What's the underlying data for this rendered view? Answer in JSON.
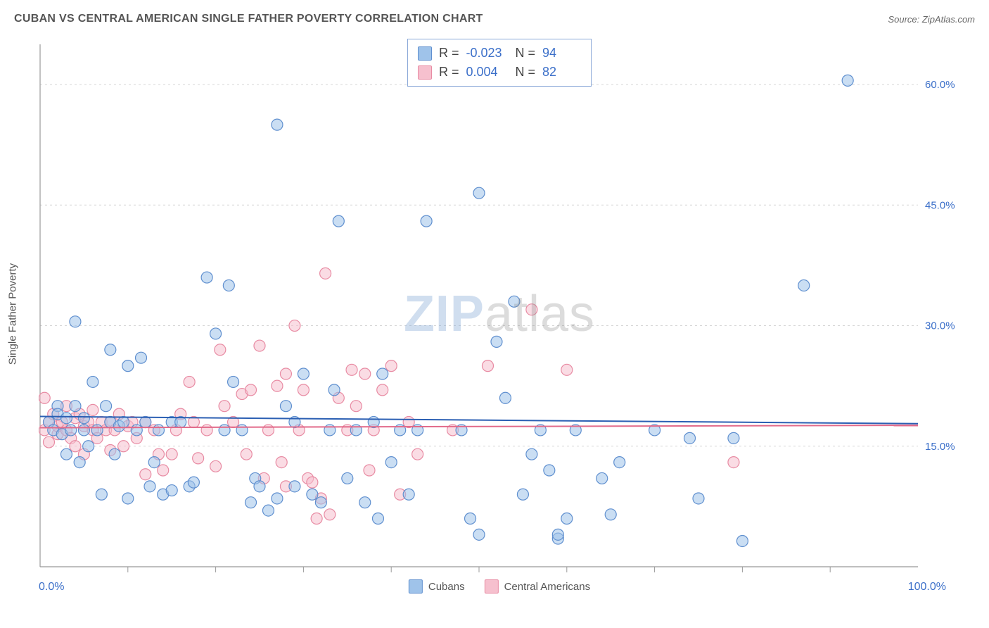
{
  "title": "CUBAN VS CENTRAL AMERICAN SINGLE FATHER POVERTY CORRELATION CHART",
  "source_label": "Source: ZipAtlas.com",
  "y_axis_label": "Single Father Poverty",
  "watermark": {
    "zip": "ZIP",
    "atlas": "atlas"
  },
  "chart": {
    "type": "scatter",
    "xlim": [
      0,
      100
    ],
    "ylim": [
      0,
      65
    ],
    "x_min_label": "0.0%",
    "x_max_label": "100.0%",
    "y_ticks": [
      15,
      30,
      45,
      60
    ],
    "y_tick_labels": [
      "15.0%",
      "30.0%",
      "45.0%",
      "60.0%"
    ],
    "x_ticks": [
      10,
      20,
      30,
      40,
      50,
      60,
      70,
      80,
      90
    ],
    "background_color": "#ffffff",
    "grid_color": "#d7d7d7",
    "grid_dash": "3,4",
    "axis_color": "#999999",
    "tick_label_color": "#3b6fc9",
    "tick_label_fontsize": 15,
    "marker_radius": 8,
    "marker_stroke_width": 1.2,
    "marker_opacity": 0.55,
    "line_width": 2,
    "series": [
      {
        "name": "Cubans",
        "fill": "#9fc3ea",
        "stroke": "#5f8fcf",
        "line_color": "#2b5fb3",
        "R": "-0.023",
        "N": "94",
        "trend": {
          "y_start": 18.7,
          "y_end": 17.8
        },
        "points": [
          [
            1,
            18
          ],
          [
            1.5,
            17
          ],
          [
            2,
            20
          ],
          [
            2,
            19
          ],
          [
            2.5,
            16.5
          ],
          [
            3,
            18.5
          ],
          [
            3,
            14
          ],
          [
            3.5,
            17
          ],
          [
            4,
            30.5
          ],
          [
            4,
            20
          ],
          [
            4.5,
            13
          ],
          [
            5,
            17
          ],
          [
            5,
            18.5
          ],
          [
            5.5,
            15
          ],
          [
            6,
            23
          ],
          [
            6.5,
            17
          ],
          [
            7,
            9
          ],
          [
            7.5,
            20
          ],
          [
            8,
            18
          ],
          [
            8,
            27
          ],
          [
            8.5,
            14
          ],
          [
            9,
            17.5
          ],
          [
            9.5,
            18
          ],
          [
            10,
            25
          ],
          [
            10,
            8.5
          ],
          [
            11,
            17
          ],
          [
            11.5,
            26
          ],
          [
            12,
            18
          ],
          [
            12.5,
            10
          ],
          [
            13,
            13
          ],
          [
            13.5,
            17
          ],
          [
            14,
            9
          ],
          [
            15,
            18
          ],
          [
            15,
            9.5
          ],
          [
            16,
            18
          ],
          [
            17,
            10
          ],
          [
            17.5,
            10.5
          ],
          [
            19,
            36
          ],
          [
            20,
            29
          ],
          [
            21,
            17
          ],
          [
            21.5,
            35
          ],
          [
            22,
            23
          ],
          [
            23,
            17
          ],
          [
            24,
            8
          ],
          [
            24.5,
            11
          ],
          [
            25,
            10
          ],
          [
            26,
            7
          ],
          [
            27,
            8.5
          ],
          [
            27,
            55
          ],
          [
            28,
            20
          ],
          [
            29,
            18
          ],
          [
            29,
            10
          ],
          [
            30,
            24
          ],
          [
            31,
            9
          ],
          [
            32,
            8
          ],
          [
            33,
            17
          ],
          [
            33.5,
            22
          ],
          [
            34,
            43
          ],
          [
            35,
            11
          ],
          [
            36,
            17
          ],
          [
            37,
            8
          ],
          [
            38,
            18
          ],
          [
            38.5,
            6
          ],
          [
            39,
            24
          ],
          [
            40,
            13
          ],
          [
            41,
            17
          ],
          [
            42,
            9
          ],
          [
            43,
            17
          ],
          [
            44,
            43
          ],
          [
            48,
            17
          ],
          [
            49,
            6
          ],
          [
            50,
            46.5
          ],
          [
            50,
            4
          ],
          [
            52,
            28
          ],
          [
            53,
            21
          ],
          [
            54,
            33
          ],
          [
            55,
            9
          ],
          [
            56,
            14
          ],
          [
            57,
            17
          ],
          [
            58,
            12
          ],
          [
            59,
            3.5
          ],
          [
            59,
            4
          ],
          [
            60,
            6
          ],
          [
            61,
            17
          ],
          [
            64,
            11
          ],
          [
            65,
            6.5
          ],
          [
            66,
            13
          ],
          [
            70,
            17
          ],
          [
            74,
            16
          ],
          [
            75,
            8.5
          ],
          [
            79,
            16
          ],
          [
            80,
            3.2
          ],
          [
            87,
            35
          ],
          [
            92,
            60.5
          ]
        ]
      },
      {
        "name": "Central Americans",
        "fill": "#f6c0ce",
        "stroke": "#e88ba3",
        "line_color": "#e26a8a",
        "R": "0.004",
        "N": "82",
        "trend": {
          "y_start": 17.3,
          "y_end": 17.6
        },
        "points": [
          [
            0.5,
            17
          ],
          [
            0.5,
            21
          ],
          [
            1,
            18
          ],
          [
            1,
            15.5
          ],
          [
            1.5,
            19
          ],
          [
            2,
            16.5
          ],
          [
            2,
            17.5
          ],
          [
            2.5,
            18
          ],
          [
            3,
            20
          ],
          [
            3,
            17
          ],
          [
            3.5,
            16
          ],
          [
            4,
            18.5
          ],
          [
            4,
            15
          ],
          [
            4.5,
            19
          ],
          [
            5,
            17.5
          ],
          [
            5,
            14
          ],
          [
            5.5,
            18
          ],
          [
            6,
            17
          ],
          [
            6,
            19.5
          ],
          [
            6.5,
            16
          ],
          [
            7,
            18
          ],
          [
            7.5,
            17
          ],
          [
            8,
            14.5
          ],
          [
            8,
            18
          ],
          [
            8.5,
            17
          ],
          [
            9,
            19
          ],
          [
            9.5,
            15
          ],
          [
            10,
            17.5
          ],
          [
            10.5,
            18
          ],
          [
            11,
            16
          ],
          [
            12,
            11.5
          ],
          [
            12,
            18
          ],
          [
            13,
            17
          ],
          [
            13.5,
            14
          ],
          [
            14,
            12
          ],
          [
            15,
            14
          ],
          [
            15.5,
            17
          ],
          [
            16,
            19
          ],
          [
            17,
            23
          ],
          [
            17.5,
            18
          ],
          [
            18,
            13.5
          ],
          [
            19,
            17
          ],
          [
            20,
            12.5
          ],
          [
            20.5,
            27
          ],
          [
            21,
            20
          ],
          [
            22,
            18
          ],
          [
            23,
            21.5
          ],
          [
            23.5,
            14
          ],
          [
            24,
            22
          ],
          [
            25,
            27.5
          ],
          [
            25.5,
            11
          ],
          [
            26,
            17
          ],
          [
            27,
            22.5
          ],
          [
            27.5,
            13
          ],
          [
            28,
            10
          ],
          [
            28,
            24
          ],
          [
            29,
            30
          ],
          [
            29.5,
            17
          ],
          [
            30,
            22
          ],
          [
            30.5,
            11
          ],
          [
            31,
            10.5
          ],
          [
            31.5,
            6
          ],
          [
            32,
            8.5
          ],
          [
            32.5,
            36.5
          ],
          [
            33,
            6.5
          ],
          [
            34,
            21
          ],
          [
            35,
            17
          ],
          [
            35.5,
            24.5
          ],
          [
            36,
            20
          ],
          [
            37,
            24
          ],
          [
            37.5,
            12
          ],
          [
            38,
            17
          ],
          [
            39,
            22
          ],
          [
            40,
            25
          ],
          [
            41,
            9
          ],
          [
            42,
            18
          ],
          [
            43,
            14
          ],
          [
            47,
            17
          ],
          [
            51,
            25
          ],
          [
            56,
            32
          ],
          [
            60,
            24.5
          ],
          [
            79,
            13
          ]
        ]
      }
    ]
  },
  "legend": {
    "items": [
      {
        "label": "Cubans",
        "swatch_fill": "#9fc3ea",
        "swatch_stroke": "#5f8fcf"
      },
      {
        "label": "Central Americans",
        "swatch_fill": "#f6c0ce",
        "swatch_stroke": "#e88ba3"
      }
    ]
  }
}
